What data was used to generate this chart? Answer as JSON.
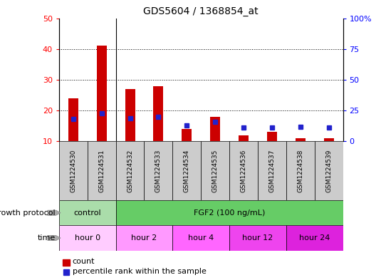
{
  "title": "GDS5604 / 1368854_at",
  "samples": [
    "GSM1224530",
    "GSM1224531",
    "GSM1224532",
    "GSM1224533",
    "GSM1224534",
    "GSM1224535",
    "GSM1224536",
    "GSM1224537",
    "GSM1224538",
    "GSM1224539"
  ],
  "counts": [
    24,
    41,
    27,
    28,
    14,
    18,
    12,
    13,
    11,
    11
  ],
  "percentile_ranks": [
    18,
    23,
    19,
    20,
    13,
    16,
    11,
    11,
    12,
    11
  ],
  "ymin": 10,
  "ymax": 50,
  "y_ticks_left": [
    10,
    20,
    30,
    40,
    50
  ],
  "y_ticks_right_vals": [
    0,
    25,
    50,
    75,
    100
  ],
  "y_ticks_right_labels": [
    "0",
    "25",
    "50",
    "75",
    "100%"
  ],
  "bar_color": "#cc0000",
  "blue_color": "#2222cc",
  "bg_color": "#ffffff",
  "sample_box_color": "#cccccc",
  "growth_protocol_groups": [
    {
      "label": "control",
      "start": 0,
      "end": 2,
      "color": "#aaddaa"
    },
    {
      "label": "FGF2 (100 ng/mL)",
      "start": 2,
      "end": 10,
      "color": "#66cc66"
    }
  ],
  "time_groups": [
    {
      "label": "hour 0",
      "start": 0,
      "end": 2,
      "color": "#ffccff"
    },
    {
      "label": "hour 2",
      "start": 2,
      "end": 4,
      "color": "#ff99ff"
    },
    {
      "label": "hour 4",
      "start": 4,
      "end": 6,
      "color": "#ff66ff"
    },
    {
      "label": "hour 12",
      "start": 6,
      "end": 8,
      "color": "#ee44ee"
    },
    {
      "label": "hour 24",
      "start": 8,
      "end": 10,
      "color": "#dd22dd"
    }
  ],
  "legend_count_label": "count",
  "legend_pct_label": "percentile rank within the sample",
  "growth_label": "growth protocol",
  "time_label": "time"
}
